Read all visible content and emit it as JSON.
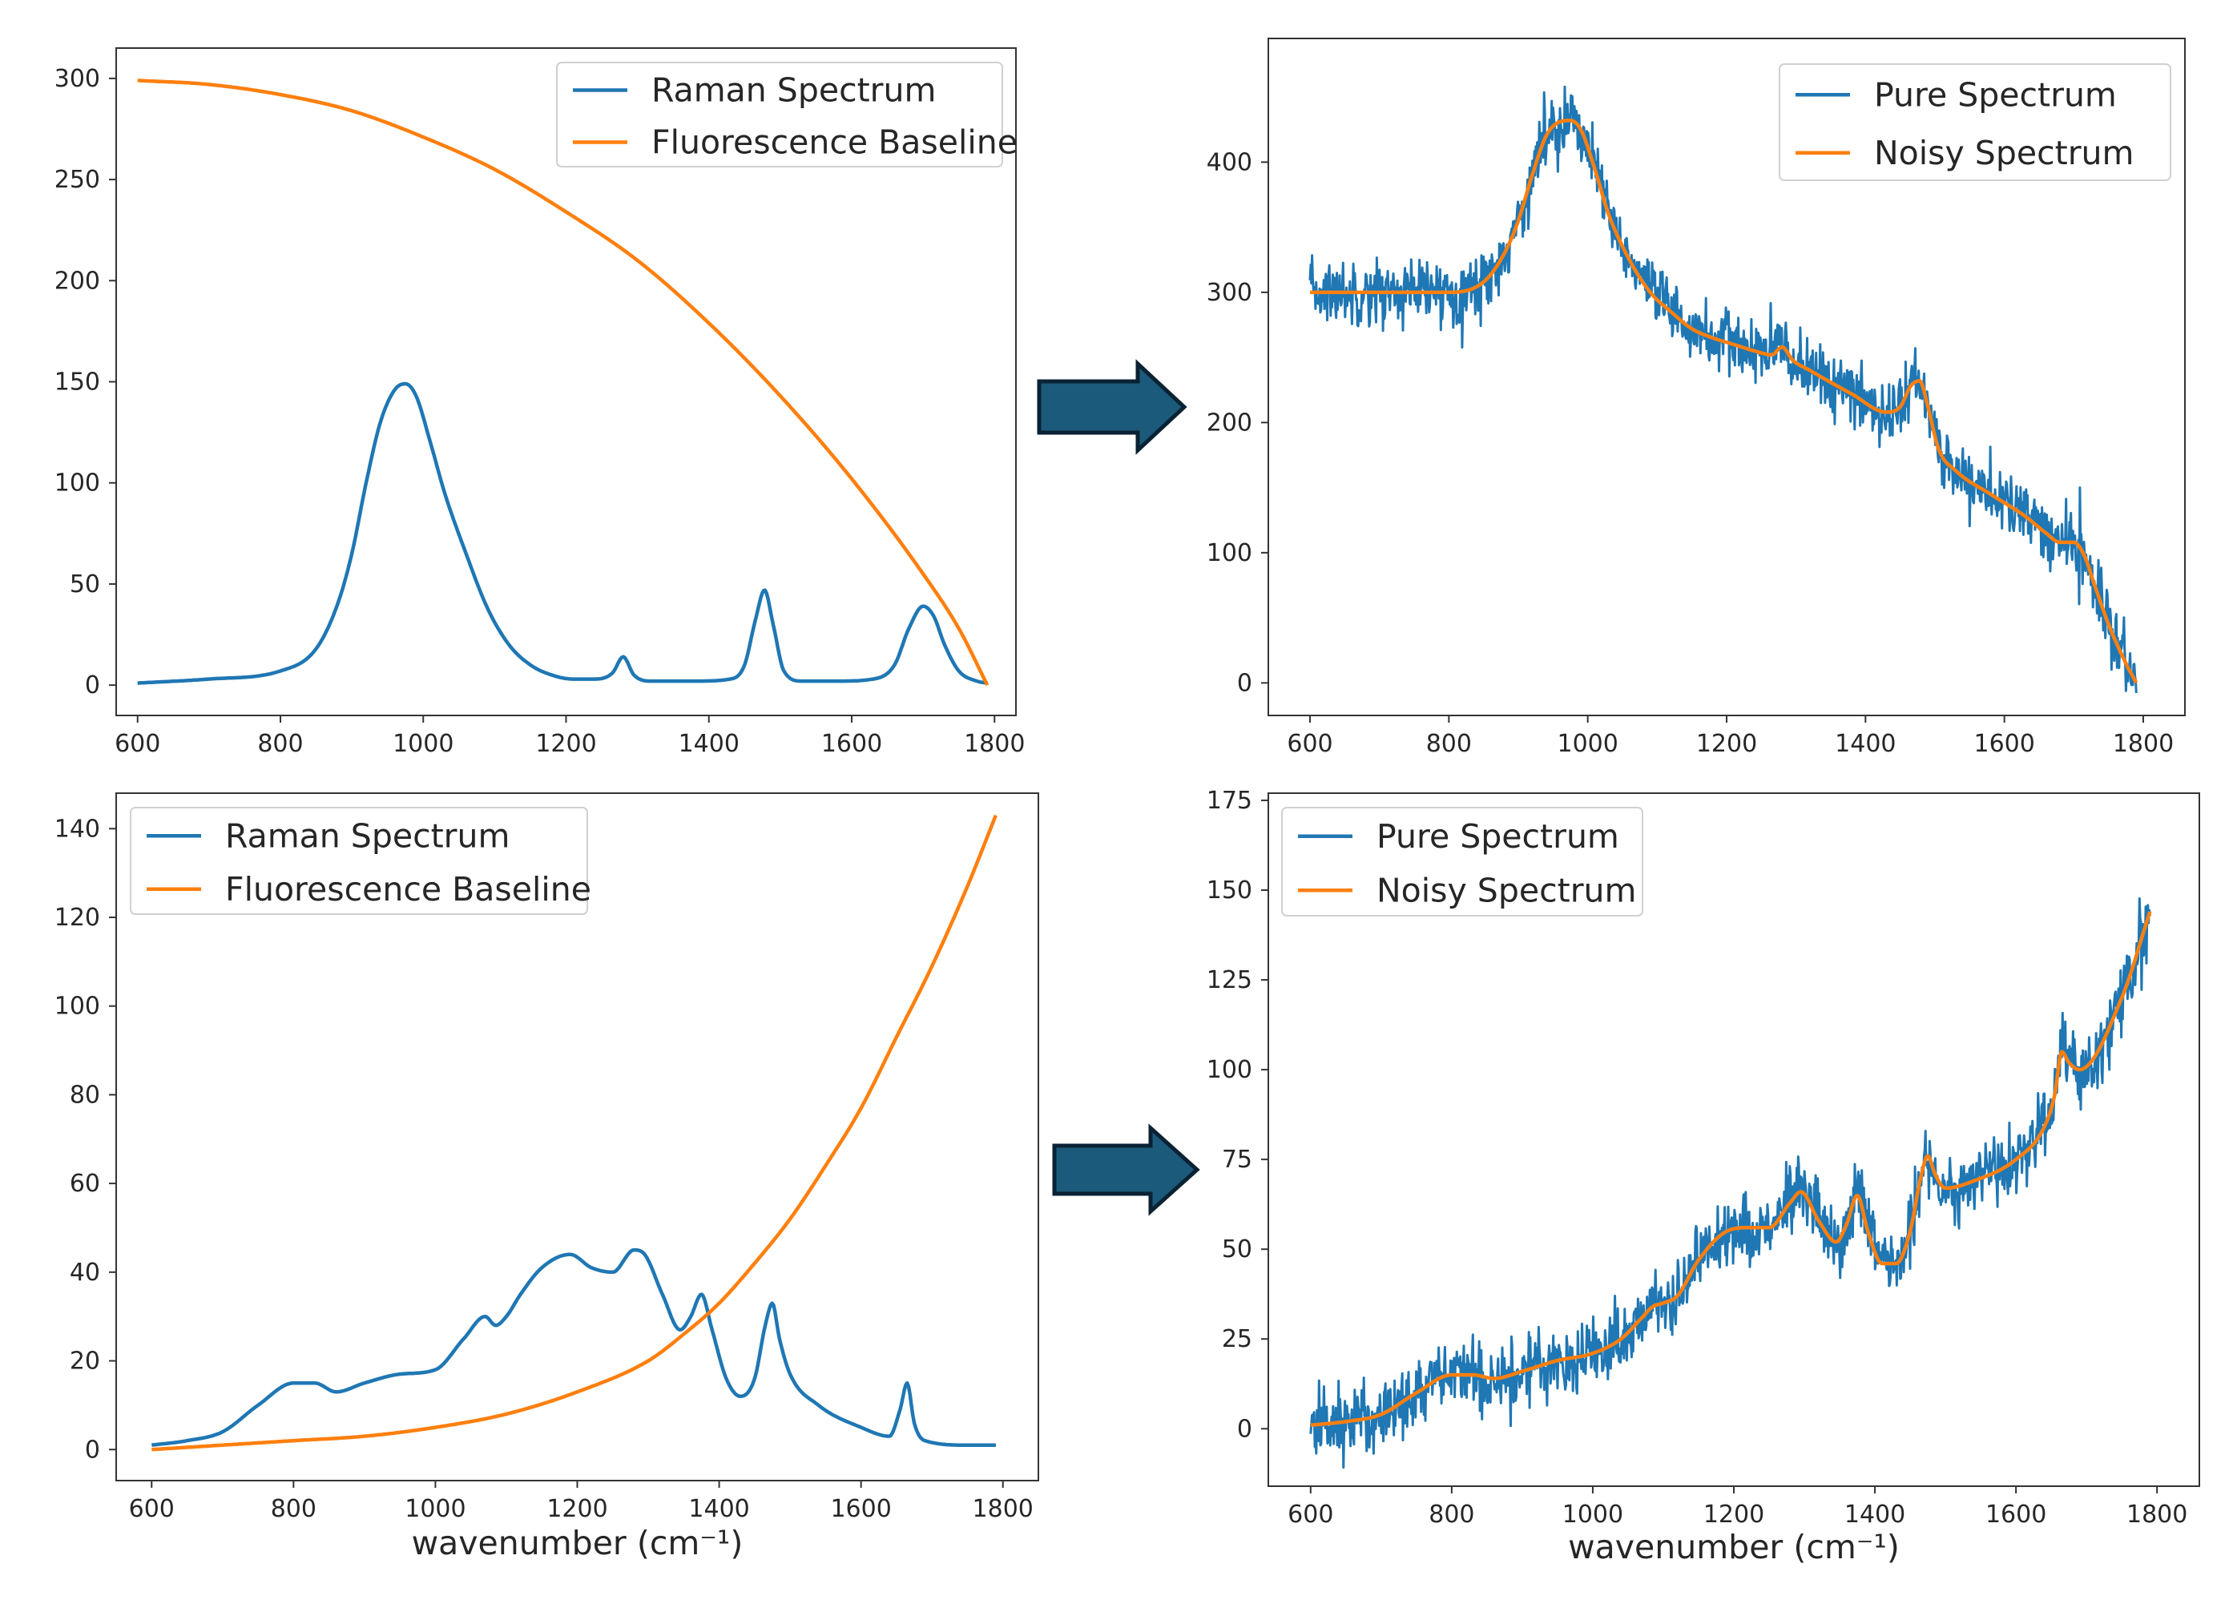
{
  "colors": {
    "raman": "#1f77b4",
    "baseline": "#ff7f0e",
    "arrow_fill": "#1b5a7a",
    "arrow_edge": "#0a2233",
    "axis": "#333333"
  },
  "arrows": [
    "arrow-right-icon",
    "arrow-right-icon"
  ],
  "chart_data": [
    {
      "id": "tl",
      "type": "line",
      "title": "",
      "xlabel": "",
      "ylabel": "",
      "xlim": [
        570,
        1830
      ],
      "ylim": [
        -15,
        315
      ],
      "xticks": [
        600,
        800,
        1000,
        1200,
        1400,
        1600,
        1800
      ],
      "yticks": [
        0,
        50,
        100,
        150,
        200,
        250,
        300
      ],
      "legend": {
        "position": "top-right",
        "labels": [
          "Raman Spectrum",
          "Fluorescence Baseline"
        ]
      },
      "series": [
        {
          "name": "Raman Spectrum",
          "color": "#1f77b4",
          "x": [
            600,
            700,
            800,
            850,
            880,
            900,
            920,
            940,
            960,
            975,
            990,
            1010,
            1030,
            1060,
            1090,
            1120,
            1150,
            1180,
            1210,
            1240,
            1265,
            1280,
            1295,
            1320,
            1380,
            1430,
            1450,
            1465,
            1478,
            1490,
            1505,
            1530,
            1580,
            1630,
            1660,
            1680,
            1700,
            1715,
            1730,
            1750,
            1775,
            1790
          ],
          "y": [
            1,
            3,
            7,
            18,
            40,
            65,
            100,
            130,
            146,
            149,
            143,
            120,
            95,
            65,
            38,
            20,
            10,
            5,
            3,
            3,
            6,
            14,
            5,
            2,
            2,
            3,
            10,
            32,
            47,
            30,
            7,
            2,
            2,
            3,
            10,
            28,
            39,
            34,
            20,
            7,
            2,
            1
          ]
        },
        {
          "name": "Fluorescence Baseline",
          "color": "#ff7f0e",
          "x": [
            600,
            700,
            800,
            900,
            1000,
            1100,
            1200,
            1300,
            1400,
            1500,
            1600,
            1700,
            1750,
            1790
          ],
          "y": [
            299,
            297,
            292,
            284,
            271,
            255,
            234,
            210,
            179,
            143,
            102,
            55,
            28,
            0
          ]
        }
      ]
    },
    {
      "id": "tr",
      "type": "line",
      "title": "",
      "xlabel": "",
      "ylabel": "",
      "xlim": [
        540,
        1860
      ],
      "ylim": [
        -25,
        495
      ],
      "xticks": [
        600,
        800,
        1000,
        1200,
        1400,
        1600,
        1800
      ],
      "yticks": [
        0,
        100,
        200,
        300,
        400
      ],
      "legend": {
        "position": "top-right",
        "labels": [
          "Pure Spectrum",
          "Noisy Spectrum"
        ]
      },
      "noise_amplitude": 22,
      "series": [
        {
          "name": "Noisy Spectrum",
          "color": "#ff7f0e",
          "x": [
            600,
            700,
            800,
            850,
            880,
            900,
            920,
            940,
            960,
            975,
            990,
            1010,
            1030,
            1060,
            1090,
            1120,
            1150,
            1180,
            1210,
            1240,
            1265,
            1280,
            1295,
            1320,
            1380,
            1430,
            1450,
            1465,
            1478,
            1490,
            1505,
            1530,
            1580,
            1630,
            1660,
            1680,
            1700,
            1715,
            1730,
            1750,
            1775,
            1790
          ],
          "y": [
            300,
            300,
            300,
            308,
            330,
            355,
            390,
            420,
            431,
            432,
            425,
            395,
            360,
            325,
            300,
            285,
            272,
            265,
            260,
            255,
            252,
            258,
            248,
            240,
            222,
            208,
            212,
            228,
            232,
            212,
            180,
            163,
            145,
            128,
            115,
            108,
            108,
            98,
            75,
            45,
            15,
            0
          ]
        },
        {
          "name": "Pure Spectrum",
          "color": "#1f77b4",
          "noisy_of": "Noisy Spectrum",
          "drawn_first": true
        }
      ]
    },
    {
      "id": "bl",
      "type": "line",
      "title": "",
      "xlabel": "wavenumber (cm⁻¹)",
      "ylabel": "",
      "xlim": [
        550,
        1850
      ],
      "ylim": [
        -7,
        148
      ],
      "xticks": [
        600,
        800,
        1000,
        1200,
        1400,
        1600,
        1800
      ],
      "yticks": [
        0,
        20,
        40,
        60,
        80,
        100,
        120,
        140
      ],
      "legend": {
        "position": "top-left",
        "labels": [
          "Raman Spectrum",
          "Fluorescence Baseline"
        ]
      },
      "series": [
        {
          "name": "Raman Spectrum",
          "color": "#1f77b4",
          "x": [
            600,
            650,
            700,
            750,
            800,
            830,
            860,
            900,
            950,
            1000,
            1040,
            1070,
            1085,
            1100,
            1120,
            1150,
            1190,
            1220,
            1250,
            1280,
            1295,
            1320,
            1345,
            1360,
            1375,
            1390,
            1410,
            1430,
            1450,
            1465,
            1475,
            1485,
            1500,
            1540,
            1600,
            1640,
            1655,
            1665,
            1675,
            1690,
            1750,
            1790
          ],
          "y": [
            1,
            2,
            4,
            10,
            15,
            15,
            13,
            15,
            17,
            18,
            25,
            30,
            28,
            30,
            35,
            41,
            44,
            41,
            40,
            45,
            44,
            35,
            27,
            30,
            35,
            27,
            16,
            12,
            16,
            28,
            33,
            25,
            17,
            10,
            5,
            3,
            9,
            15,
            6,
            2,
            1,
            1
          ]
        },
        {
          "name": "Fluorescence Baseline",
          "color": "#ff7f0e",
          "x": [
            600,
            700,
            800,
            900,
            1000,
            1100,
            1200,
            1300,
            1350,
            1400,
            1450,
            1500,
            1550,
            1600,
            1650,
            1700,
            1750,
            1790
          ],
          "y": [
            0,
            1,
            2,
            3,
            5,
            8,
            13,
            20,
            26,
            33,
            42,
            52,
            64,
            77,
            93,
            109,
            127,
            143
          ]
        }
      ]
    },
    {
      "id": "br",
      "type": "line",
      "title": "",
      "xlabel": "wavenumber (cm⁻¹)",
      "ylabel": "",
      "xlim": [
        540,
        1860
      ],
      "ylim": [
        -16,
        177
      ],
      "xticks": [
        600,
        800,
        1000,
        1200,
        1400,
        1600,
        1800
      ],
      "yticks": [
        0,
        25,
        50,
        75,
        100,
        125,
        150,
        175
      ],
      "legend": {
        "position": "top-left",
        "labels": [
          "Pure Spectrum",
          "Noisy Spectrum"
        ]
      },
      "noise_amplitude": 9,
      "series": [
        {
          "name": "Noisy Spectrum",
          "color": "#ff7f0e",
          "x": [
            600,
            650,
            700,
            750,
            800,
            830,
            860,
            900,
            950,
            1000,
            1040,
            1070,
            1085,
            1100,
            1120,
            1150,
            1190,
            1220,
            1250,
            1280,
            1295,
            1320,
            1345,
            1360,
            1375,
            1390,
            1410,
            1430,
            1450,
            1465,
            1475,
            1485,
            1500,
            1540,
            1600,
            1640,
            1655,
            1665,
            1675,
            1690,
            1750,
            1790
          ],
          "y": [
            1,
            2,
            4,
            10,
            15,
            15,
            14,
            16,
            19,
            21,
            25,
            31,
            34,
            35,
            37,
            47,
            55,
            56,
            56,
            63,
            66,
            58,
            52,
            57,
            65,
            55,
            46,
            46,
            55,
            70,
            76,
            71,
            67,
            69,
            75,
            84,
            93,
            105,
            102,
            100,
            120,
            144
          ]
        },
        {
          "name": "Pure Spectrum",
          "color": "#1f77b4",
          "noisy_of": "Noisy Spectrum",
          "drawn_first": true
        }
      ]
    }
  ]
}
